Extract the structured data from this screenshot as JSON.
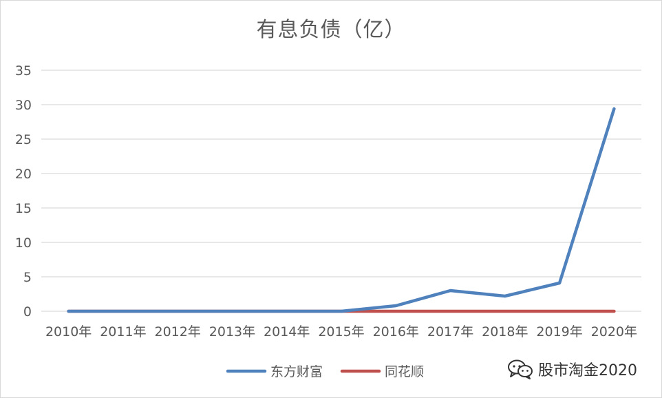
{
  "chart_data": {
    "type": "line",
    "title": "有息负债（亿）",
    "categories": [
      "2010年",
      "2011年",
      "2012年",
      "2013年",
      "2014年",
      "2015年",
      "2016年",
      "2017年",
      "2018年",
      "2019年",
      "2020年"
    ],
    "series": [
      {
        "name": "东方财富",
        "color": "#4f81bd",
        "values": [
          0,
          0,
          0,
          0,
          0,
          0,
          0.8,
          3.0,
          2.2,
          4.1,
          29.4
        ]
      },
      {
        "name": "同花顺",
        "color": "#c0504d",
        "values": [
          0,
          0,
          0,
          0,
          0,
          0,
          0,
          0,
          0,
          0,
          0
        ]
      }
    ],
    "ylim": [
      0,
      35
    ],
    "yticks": [
      0,
      5,
      10,
      15,
      20,
      25,
      30,
      35
    ],
    "grid": true,
    "legend_position": "bottom",
    "xlabel": "",
    "ylabel": ""
  },
  "watermark": {
    "text": "股市淘金2020",
    "icon": "wechat-icon"
  }
}
